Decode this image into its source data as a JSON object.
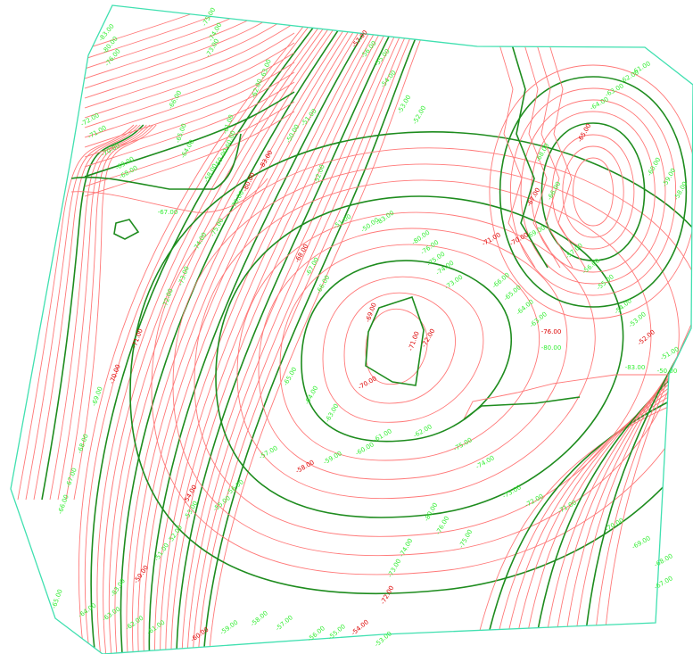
{
  "colors": {
    "background": "#ffffff",
    "boundary": "#40e0b0",
    "minor_contour": "#ff7878",
    "index_contour": "#1e8c1e",
    "minor_label": "#33ee33",
    "index_label": "#dd0000"
  },
  "labels": [
    {
      "text": "-83.00"
    },
    {
      "text": "-80.00"
    },
    {
      "text": "-76.00"
    },
    {
      "text": "-75.00"
    },
    {
      "text": "-74.00"
    },
    {
      "text": "-73.00"
    },
    {
      "text": "-72.00"
    },
    {
      "text": "-71.00"
    },
    {
      "text": "-70.00"
    },
    {
      "text": "-69.00"
    },
    {
      "text": "-68.00"
    },
    {
      "text": "-67.00"
    },
    {
      "text": "-66.00"
    },
    {
      "text": "-65.00"
    },
    {
      "text": "-64.00"
    },
    {
      "text": "-63.00"
    },
    {
      "text": "-62.00"
    },
    {
      "text": "-61.00"
    },
    {
      "text": "-60.00"
    },
    {
      "text": "-59.00"
    },
    {
      "text": "-58.00"
    },
    {
      "text": "-57.00"
    },
    {
      "text": "-56.00"
    },
    {
      "text": "-55.00"
    },
    {
      "text": "-54.00"
    },
    {
      "text": "-53.00"
    },
    {
      "text": "-52.00"
    },
    {
      "text": "-51.00"
    },
    {
      "text": "-50.00"
    }
  ]
}
